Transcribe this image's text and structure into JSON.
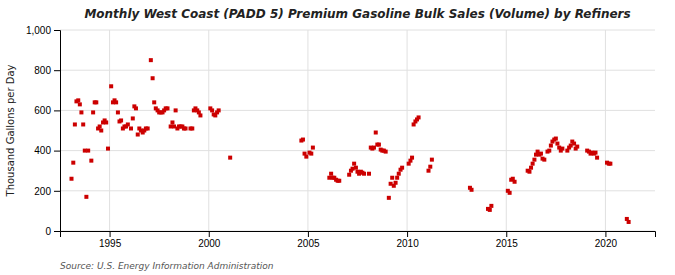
{
  "chart_data": {
    "type": "scatter",
    "title": "Monthly West Coast (PADD 5) Premium Gasoline Bulk Sales (Volume) by Refiners",
    "ylabel": "Thousand Gallons per Day",
    "annotations": [
      "Source: U.S. Energy Information Administration"
    ],
    "color": "#CC0000",
    "marker": "square",
    "grid": true,
    "xlim": [
      1992.5,
      2022.5
    ],
    "xticks": [
      1995,
      2000,
      2005,
      2010,
      2015,
      2020
    ],
    "ylim": [
      0,
      1000
    ],
    "yticks": [
      0,
      200,
      400,
      600,
      800,
      {
        "value": 1000,
        "label": "1,000"
      }
    ],
    "x": [
      1993.08,
      1993.17,
      1993.25,
      1993.33,
      1993.42,
      1993.5,
      1993.58,
      1993.67,
      1993.75,
      1993.83,
      1993.92,
      1994.08,
      1994.17,
      1994.25,
      1994.33,
      1994.42,
      1994.5,
      1994.58,
      1994.67,
      1994.75,
      1994.83,
      1994.92,
      1995.08,
      1995.17,
      1995.25,
      1995.33,
      1995.42,
      1995.5,
      1995.58,
      1995.67,
      1995.75,
      1995.83,
      1995.92,
      1996.08,
      1996.17,
      1996.25,
      1996.33,
      1996.42,
      1996.5,
      1996.58,
      1996.67,
      1996.75,
      1996.83,
      1996.92,
      1997.08,
      1997.17,
      1997.25,
      1997.33,
      1997.42,
      1997.5,
      1997.58,
      1997.67,
      1997.75,
      1997.83,
      1997.92,
      1998.08,
      1998.17,
      1998.25,
      1998.33,
      1998.42,
      1998.5,
      1998.58,
      1998.67,
      1998.75,
      1998.83,
      1999.08,
      1999.17,
      1999.25,
      1999.33,
      1999.42,
      1999.5,
      1999.58,
      2000.08,
      2000.17,
      2000.25,
      2000.33,
      2000.42,
      2000.5,
      2001.08,
      2004.67,
      2004.75,
      2004.83,
      2004.92,
      2005.08,
      2005.17,
      2005.25,
      2006.08,
      2006.17,
      2006.25,
      2006.33,
      2006.42,
      2006.5,
      2006.58,
      2007.08,
      2007.17,
      2007.25,
      2007.33,
      2007.42,
      2007.5,
      2007.58,
      2007.67,
      2007.75,
      2007.83,
      2008.08,
      2008.17,
      2008.25,
      2008.33,
      2008.42,
      2008.5,
      2008.58,
      2008.67,
      2008.75,
      2008.83,
      2008.92,
      2009.08,
      2009.17,
      2009.25,
      2009.33,
      2009.42,
      2009.5,
      2009.58,
      2009.67,
      2009.75,
      2010.08,
      2010.17,
      2010.25,
      2010.33,
      2010.42,
      2010.5,
      2010.58,
      2011.08,
      2011.17,
      2011.25,
      2013.17,
      2013.25,
      2014.08,
      2014.17,
      2014.25,
      2015.08,
      2015.17,
      2015.25,
      2015.33,
      2015.42,
      2016.08,
      2016.17,
      2016.25,
      2016.33,
      2016.42,
      2016.5,
      2016.58,
      2016.67,
      2016.75,
      2016.83,
      2016.92,
      2017.08,
      2017.17,
      2017.25,
      2017.33,
      2017.42,
      2017.5,
      2017.58,
      2017.67,
      2017.75,
      2017.83,
      2018.08,
      2018.17,
      2018.25,
      2018.33,
      2018.42,
      2018.5,
      2018.58,
      2019.08,
      2019.17,
      2019.25,
      2019.33,
      2019.42,
      2019.5,
      2019.58,
      2020.08,
      2020.17,
      2020.25,
      2021.08,
      2021.17
    ],
    "values": [
      260,
      340,
      530,
      645,
      650,
      630,
      590,
      530,
      400,
      170,
      400,
      350,
      590,
      640,
      640,
      510,
      520,
      500,
      540,
      550,
      540,
      410,
      720,
      640,
      650,
      640,
      590,
      545,
      550,
      510,
      520,
      520,
      530,
      510,
      560,
      620,
      610,
      480,
      510,
      500,
      490,
      500,
      510,
      510,
      850,
      760,
      640,
      610,
      600,
      590,
      590,
      590,
      600,
      610,
      610,
      520,
      540,
      520,
      600,
      510,
      520,
      520,
      520,
      510,
      510,
      510,
      510,
      600,
      610,
      600,
      590,
      575,
      610,
      600,
      580,
      575,
      590,
      600,
      365,
      450,
      455,
      385,
      370,
      390,
      385,
      415,
      265,
      285,
      265,
      265,
      255,
      250,
      250,
      280,
      300,
      310,
      335,
      315,
      295,
      285,
      295,
      290,
      285,
      285,
      415,
      410,
      415,
      490,
      430,
      430,
      405,
      400,
      400,
      395,
      165,
      235,
      265,
      225,
      240,
      265,
      285,
      305,
      315,
      335,
      350,
      365,
      530,
      545,
      555,
      565,
      300,
      320,
      355,
      215,
      205,
      110,
      105,
      125,
      200,
      190,
      255,
      260,
      245,
      300,
      295,
      315,
      335,
      355,
      380,
      395,
      380,
      385,
      360,
      355,
      395,
      400,
      425,
      445,
      455,
      460,
      435,
      415,
      400,
      410,
      400,
      415,
      425,
      445,
      435,
      410,
      420,
      400,
      395,
      385,
      390,
      385,
      390,
      365,
      340,
      335,
      335,
      60,
      45
    ]
  }
}
